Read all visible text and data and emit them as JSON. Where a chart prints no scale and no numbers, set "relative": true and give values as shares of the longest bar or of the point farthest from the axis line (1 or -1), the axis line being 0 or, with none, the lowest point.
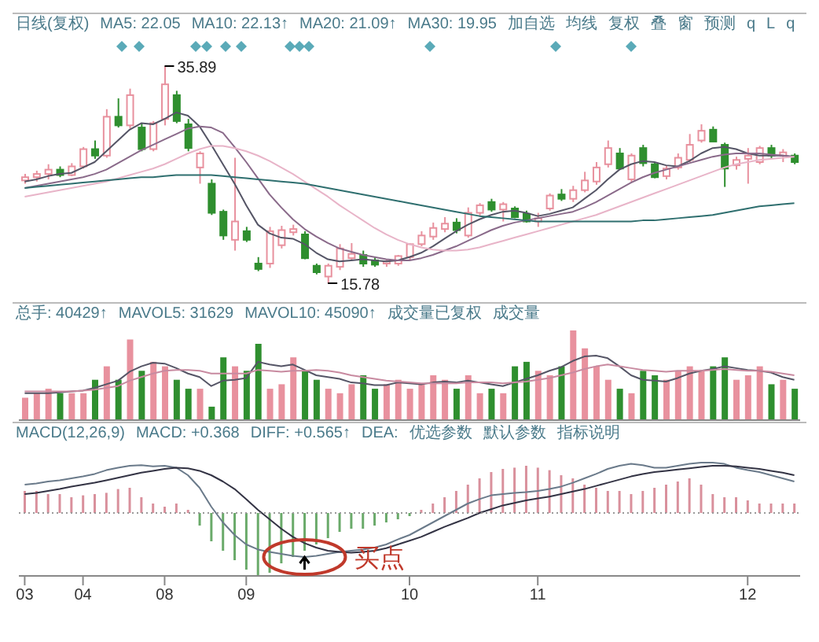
{
  "chart_data": [
    {
      "type": "candlestick",
      "tick_labels": false,
      "categories": [
        "03",
        null,
        null,
        null,
        null,
        "04",
        null,
        null,
        null,
        null,
        null,
        null,
        "08",
        null,
        null,
        null,
        null,
        null,
        null,
        "09",
        null,
        null,
        null,
        null,
        null,
        null,
        null,
        null,
        null,
        null,
        null,
        null,
        null,
        "10",
        null,
        null,
        null,
        null,
        null,
        null,
        null,
        null,
        null,
        null,
        "11",
        null,
        null,
        null,
        null,
        null,
        null,
        null,
        null,
        null,
        null,
        null,
        null,
        null,
        null,
        null,
        null,
        null,
        "12",
        null,
        null,
        null,
        null
      ],
      "annotations": [
        "日线(复权)",
        "MA5: 22.05",
        "MA10: 22.13↑",
        "MA20: 21.09↑",
        "MA30: 19.95",
        "加自选",
        "均线",
        "复权",
        "叠",
        "窗",
        "预测",
        "q",
        "L",
        "q",
        "35.89",
        "15.78"
      ],
      "ohlc": [
        [
          25.3,
          25.9,
          25.0,
          25.6
        ],
        [
          25.6,
          26.2,
          25.2,
          25.9
        ],
        [
          25.9,
          26.8,
          25.4,
          26.3
        ],
        [
          26.3,
          26.6,
          25.6,
          25.8
        ],
        [
          25.8,
          26.9,
          25.7,
          26.6
        ],
        [
          26.6,
          28.4,
          26.4,
          28.2
        ],
        [
          28.2,
          29.0,
          27.3,
          27.6
        ],
        [
          27.6,
          31.9,
          27.4,
          31.2
        ],
        [
          31.2,
          32.9,
          30.2,
          30.4
        ],
        [
          30.4,
          33.8,
          30.1,
          33.2
        ],
        [
          30.2,
          30.6,
          28.0,
          28.2
        ],
        [
          28.2,
          30.8,
          28.0,
          30.6
        ],
        [
          31.0,
          35.89,
          30.4,
          34.2
        ],
        [
          33.2,
          33.6,
          30.6,
          30.8
        ],
        [
          30.5,
          31.0,
          28.0,
          28.3
        ],
        [
          26.5,
          28.0,
          25.0,
          27.8
        ],
        [
          25.0,
          25.4,
          22.1,
          22.3
        ],
        [
          22.4,
          22.6,
          19.8,
          20.2
        ],
        [
          19.8,
          27.4,
          18.8,
          21.5
        ],
        [
          20.6,
          21.0,
          19.6,
          19.8
        ],
        [
          17.6,
          18.2,
          16.9,
          17.1
        ],
        [
          17.6,
          21.0,
          17.2,
          20.6
        ],
        [
          19.3,
          21.1,
          19.0,
          20.7
        ],
        [
          20.5,
          21.2,
          20.2,
          20.8
        ],
        [
          20.3,
          20.6,
          18.0,
          18.1
        ],
        [
          17.4,
          17.6,
          16.6,
          16.8
        ],
        [
          16.4,
          17.6,
          15.78,
          17.4
        ],
        [
          17.3,
          19.4,
          17.0,
          19.0
        ],
        [
          18.1,
          19.5,
          17.9,
          18.5
        ],
        [
          18.4,
          18.8,
          17.3,
          17.6
        ],
        [
          17.9,
          18.2,
          17.3,
          17.5
        ],
        [
          17.6,
          18.0,
          17.3,
          17.8
        ],
        [
          17.6,
          18.4,
          17.4,
          18.3
        ],
        [
          18.2,
          19.5,
          17.9,
          19.4
        ],
        [
          19.4,
          20.6,
          19.2,
          20.2
        ],
        [
          20.1,
          21.4,
          19.8,
          20.9
        ],
        [
          20.8,
          21.9,
          20.5,
          21.3
        ],
        [
          21.4,
          21.8,
          20.4,
          20.7
        ],
        [
          20.2,
          22.8,
          20.0,
          22.3
        ],
        [
          22.3,
          23.2,
          22.0,
          23.0
        ],
        [
          23.3,
          23.6,
          22.4,
          22.6
        ],
        [
          22.6,
          23.3,
          21.5,
          23.1
        ],
        [
          22.7,
          22.9,
          21.8,
          21.9
        ],
        [
          22.2,
          22.5,
          21.4,
          21.5
        ],
        [
          21.5,
          22.3,
          21.0,
          21.8
        ],
        [
          22.7,
          24.1,
          22.5,
          23.9
        ],
        [
          24.0,
          24.5,
          23.4,
          23.6
        ],
        [
          23.6,
          24.8,
          23.3,
          24.4
        ],
        [
          24.4,
          26.1,
          24.2,
          25.3
        ],
        [
          25.2,
          27.0,
          24.9,
          26.5
        ],
        [
          26.8,
          29.0,
          26.5,
          28.3
        ],
        [
          27.8,
          28.3,
          26.3,
          26.4
        ],
        [
          25.4,
          27.8,
          25.1,
          27.6
        ],
        [
          28.3,
          28.6,
          26.6,
          26.9
        ],
        [
          26.8,
          27.0,
          25.5,
          25.6
        ],
        [
          25.7,
          26.7,
          25.4,
          26.4
        ],
        [
          26.5,
          27.8,
          26.3,
          27.4
        ],
        [
          27.2,
          29.6,
          27.0,
          28.6
        ],
        [
          29.0,
          30.5,
          28.8,
          29.9
        ],
        [
          30.0,
          30.3,
          28.9,
          28.9
        ],
        [
          28.6,
          28.8,
          24.7,
          26.4
        ],
        [
          26.7,
          27.5,
          26.3,
          27.2
        ],
        [
          27.3,
          28.3,
          25.0,
          27.6
        ],
        [
          27.0,
          28.5,
          26.8,
          28.3
        ],
        [
          28.3,
          28.6,
          27.3,
          27.6
        ],
        [
          27.6,
          28.2,
          27.0,
          27.9
        ],
        [
          27.6,
          27.8,
          26.8,
          27.0
        ]
      ],
      "colors": [
        "#e8919e",
        "#e8919e",
        "#e8919e",
        "#2f8f2f",
        "#e8919e",
        "#e8919e",
        "#2f8f2f",
        "#e8919e",
        "#2f8f2f",
        "#e8919e",
        "#2f8f2f",
        "#e8919e",
        "#e8919e",
        "#2f8f2f",
        "#2f8f2f",
        "#e8919e",
        "#2f8f2f",
        "#2f8f2f",
        "#e8919e",
        "#2f8f2f",
        "#2f8f2f",
        "#e8919e",
        "#e8919e",
        "#e8919e",
        "#2f8f2f",
        "#2f8f2f",
        "#e8919e",
        "#e8919e",
        "#e8919e",
        "#2f8f2f",
        "#2f8f2f",
        "#e8919e",
        "#e8919e",
        "#e8919e",
        "#e8919e",
        "#e8919e",
        "#e8919e",
        "#2f8f2f",
        "#e8919e",
        "#e8919e",
        "#2f8f2f",
        "#e8919e",
        "#2f8f2f",
        "#2f8f2f",
        "#e8919e",
        "#e8919e",
        "#2f8f2f",
        "#e8919e",
        "#e8919e",
        "#e8919e",
        "#e8919e",
        "#2f8f2f",
        "#e8919e",
        "#2f8f2f",
        "#2f8f2f",
        "#e8919e",
        "#e8919e",
        "#e8919e",
        "#e8919e",
        "#2f8f2f",
        "#2f8f2f",
        "#e8919e",
        "#e8919e",
        "#e8919e",
        "#2f8f2f",
        "#e8919e",
        "#2f8f2f"
      ],
      "series": [
        {
          "type": "line",
          "color": "#555566",
          "values": [
            25.2,
            25.4,
            25.7,
            25.9,
            26.0,
            26.5,
            27.0,
            28.0,
            29.0,
            30.0,
            30.6,
            30.5,
            31.0,
            31.6,
            31.3,
            30.3,
            28.6,
            26.8,
            25.0,
            23.0,
            21.2,
            20.4,
            20.0,
            19.9,
            19.4,
            18.6,
            18.0,
            17.8,
            17.9,
            18.0,
            17.9,
            17.8,
            17.9,
            18.2,
            18.6,
            19.2,
            19.9,
            20.6,
            21.2,
            21.7,
            22.1,
            22.4,
            22.5,
            22.3,
            22.0,
            22.2,
            22.5,
            22.8,
            23.6,
            24.4,
            25.4,
            26.3,
            26.8,
            27.1,
            27.0,
            26.7,
            26.6,
            27.1,
            27.8,
            28.3,
            28.4,
            28.2,
            27.8,
            27.6,
            27.6,
            27.6,
            27.5
          ]
        },
        {
          "type": "line",
          "color": "#8a6a8a",
          "values": [
            24.6,
            24.8,
            25.0,
            25.2,
            25.4,
            25.6,
            25.9,
            26.3,
            26.9,
            27.5,
            28.1,
            28.6,
            29.1,
            29.6,
            30.1,
            30.3,
            30.2,
            29.7,
            28.4,
            27.0,
            25.5,
            24.0,
            22.8,
            21.7,
            20.8,
            20.1,
            19.5,
            19.0,
            18.7,
            18.4,
            18.2,
            18.0,
            17.9,
            17.9,
            18.1,
            18.4,
            18.8,
            19.2,
            19.7,
            20.2,
            20.7,
            21.1,
            21.4,
            21.6,
            21.8,
            22.0,
            22.2,
            22.4,
            22.8,
            23.3,
            23.9,
            24.5,
            25.1,
            25.6,
            26.0,
            26.3,
            26.6,
            26.9,
            27.2,
            27.5,
            27.7,
            27.8,
            27.8,
            27.8,
            27.7,
            27.6,
            27.5
          ]
        },
        {
          "type": "line",
          "color": "#e8b4c8",
          "values": [
            23.8,
            24.0,
            24.2,
            24.4,
            24.6,
            24.8,
            25.0,
            25.2,
            25.5,
            25.8,
            26.1,
            26.4,
            26.8,
            27.3,
            27.8,
            28.2,
            28.5,
            28.5,
            28.3,
            28.0,
            27.6,
            27.1,
            26.5,
            25.9,
            25.2,
            24.5,
            23.8,
            23.0,
            22.3,
            21.6,
            20.9,
            20.3,
            19.8,
            19.4,
            19.1,
            18.9,
            18.8,
            18.8,
            18.9,
            19.1,
            19.4,
            19.7,
            20.0,
            20.3,
            20.6,
            20.9,
            21.2,
            21.5,
            21.8,
            22.1,
            22.5,
            22.9,
            23.3,
            23.7,
            24.1,
            24.5,
            24.9,
            25.3,
            25.7,
            26.1,
            26.5,
            26.8,
            27.0,
            27.2,
            27.3,
            27.4,
            27.5
          ]
        },
        {
          "type": "line",
          "color": "#2f6f6f",
          "values": [
            24.6,
            24.7,
            24.8,
            24.9,
            25.0,
            25.1,
            25.2,
            25.3,
            25.4,
            25.5,
            25.6,
            25.6,
            25.7,
            25.8,
            25.8,
            25.8,
            25.8,
            25.7,
            25.6,
            25.5,
            25.4,
            25.3,
            25.2,
            25.1,
            25.0,
            24.8,
            24.6,
            24.4,
            24.2,
            24.0,
            23.8,
            23.6,
            23.4,
            23.2,
            23.0,
            22.8,
            22.6,
            22.4,
            22.2,
            22.0,
            21.9,
            21.8,
            21.7,
            21.6,
            21.5,
            21.5,
            21.5,
            21.5,
            21.5,
            21.5,
            21.5,
            21.5,
            21.5,
            21.6,
            21.6,
            21.7,
            21.8,
            21.9,
            22.0,
            22.1,
            22.3,
            22.5,
            22.7,
            22.9,
            23.0,
            23.1,
            23.2
          ]
        }
      ]
    },
    {
      "type": "bar",
      "relative": true,
      "tick_labels": false,
      "categories": [
        "03",
        null,
        null,
        null,
        null,
        "04",
        null,
        null,
        null,
        null,
        null,
        null,
        "08",
        null,
        null,
        null,
        null,
        null,
        null,
        "09",
        null,
        null,
        null,
        null,
        null,
        null,
        null,
        null,
        null,
        null,
        null,
        null,
        null,
        "10",
        null,
        null,
        null,
        null,
        null,
        null,
        null,
        null,
        null,
        null,
        "11",
        null,
        null,
        null,
        null,
        null,
        null,
        null,
        null,
        null,
        null,
        null,
        null,
        null,
        null,
        null,
        null,
        null,
        "12",
        null,
        null,
        null,
        null
      ],
      "annotations": [
        "总手: 40429↑",
        "MAVOL5: 31629",
        "MAVOL10: 45090↑",
        "成交量已复权",
        "成交量"
      ],
      "values": [
        0.25,
        0.3,
        0.35,
        0.3,
        0.3,
        0.3,
        0.45,
        0.6,
        0.45,
        0.9,
        0.55,
        0.65,
        0.6,
        0.45,
        0.35,
        0.35,
        0.15,
        0.7,
        0.6,
        0.55,
        0.85,
        0.35,
        0.4,
        0.7,
        0.55,
        0.45,
        0.35,
        0.3,
        0.4,
        0.5,
        0.35,
        0.4,
        0.45,
        0.35,
        0.4,
        0.5,
        0.45,
        0.35,
        0.5,
        0.3,
        0.35,
        0.3,
        0.6,
        0.65,
        0.55,
        0.5,
        0.6,
        1.0,
        0.8,
        0.6,
        0.45,
        0.35,
        0.3,
        0.55,
        0.5,
        0.45,
        0.55,
        0.6,
        0.55,
        0.6,
        0.7,
        0.45,
        0.5,
        0.6,
        0.4,
        0.45,
        0.35
      ],
      "colors": [
        "#e8919e",
        "#e8919e",
        "#e8919e",
        "#2f8f2f",
        "#e8919e",
        "#e8919e",
        "#2f8f2f",
        "#e8919e",
        "#2f8f2f",
        "#e8919e",
        "#2f8f2f",
        "#e8919e",
        "#e8919e",
        "#2f8f2f",
        "#2f8f2f",
        "#e8919e",
        "#2f8f2f",
        "#2f8f2f",
        "#e8919e",
        "#2f8f2f",
        "#2f8f2f",
        "#e8919e",
        "#e8919e",
        "#e8919e",
        "#2f8f2f",
        "#2f8f2f",
        "#e8919e",
        "#e8919e",
        "#e8919e",
        "#2f8f2f",
        "#2f8f2f",
        "#e8919e",
        "#e8919e",
        "#e8919e",
        "#e8919e",
        "#e8919e",
        "#e8919e",
        "#2f8f2f",
        "#e8919e",
        "#e8919e",
        "#2f8f2f",
        "#e8919e",
        "#2f8f2f",
        "#2f8f2f",
        "#e8919e",
        "#e8919e",
        "#2f8f2f",
        "#e8919e",
        "#e8919e",
        "#e8919e",
        "#e8919e",
        "#2f8f2f",
        "#e8919e",
        "#2f8f2f",
        "#2f8f2f",
        "#e8919e",
        "#e8919e",
        "#e8919e",
        "#e8919e",
        "#2f8f2f",
        "#2f8f2f",
        "#e8919e",
        "#e8919e",
        "#e8919e",
        "#2f8f2f",
        "#e8919e",
        "#2f8f2f"
      ],
      "series": [
        {
          "type": "line",
          "color": "#555566",
          "values": [
            0.3,
            0.3,
            0.3,
            0.31,
            0.32,
            0.33,
            0.36,
            0.4,
            0.44,
            0.54,
            0.6,
            0.64,
            0.63,
            0.58,
            0.52,
            0.48,
            0.38,
            0.44,
            0.45,
            0.47,
            0.65,
            0.62,
            0.6,
            0.62,
            0.56,
            0.5,
            0.48,
            0.46,
            0.42,
            0.41,
            0.39,
            0.39,
            0.42,
            0.41,
            0.4,
            0.42,
            0.43,
            0.42,
            0.44,
            0.42,
            0.4,
            0.38,
            0.42,
            0.46,
            0.5,
            0.55,
            0.59,
            0.66,
            0.71,
            0.72,
            0.69,
            0.6,
            0.5,
            0.45,
            0.44,
            0.43,
            0.47,
            0.52,
            0.55,
            0.57,
            0.6,
            0.58,
            0.56,
            0.55,
            0.53,
            0.48,
            0.45
          ]
        },
        {
          "type": "line",
          "color": "#c88aa0",
          "values": [
            0.32,
            0.32,
            0.32,
            0.32,
            0.32,
            0.33,
            0.34,
            0.36,
            0.38,
            0.44,
            0.48,
            0.52,
            0.55,
            0.56,
            0.56,
            0.55,
            0.52,
            0.52,
            0.52,
            0.52,
            0.56,
            0.55,
            0.54,
            0.55,
            0.55,
            0.56,
            0.55,
            0.53,
            0.5,
            0.48,
            0.46,
            0.44,
            0.43,
            0.42,
            0.41,
            0.41,
            0.41,
            0.41,
            0.42,
            0.42,
            0.42,
            0.41,
            0.42,
            0.43,
            0.45,
            0.47,
            0.5,
            0.53,
            0.57,
            0.6,
            0.62,
            0.6,
            0.58,
            0.56,
            0.55,
            0.54,
            0.55,
            0.55,
            0.55,
            0.56,
            0.57,
            0.56,
            0.55,
            0.55,
            0.54,
            0.52,
            0.5
          ]
        }
      ]
    },
    {
      "type": "bar",
      "relative": true,
      "categories": [
        "03",
        null,
        null,
        null,
        null,
        "04",
        null,
        null,
        null,
        null,
        null,
        null,
        "08",
        null,
        null,
        null,
        null,
        null,
        null,
        "09",
        null,
        null,
        null,
        null,
        null,
        null,
        null,
        null,
        null,
        null,
        null,
        null,
        null,
        "10",
        null,
        null,
        null,
        null,
        null,
        null,
        null,
        null,
        null,
        null,
        "11",
        null,
        null,
        null,
        null,
        null,
        null,
        null,
        null,
        null,
        null,
        null,
        null,
        null,
        null,
        null,
        null,
        null,
        "12",
        null,
        null,
        null,
        null
      ],
      "annotations": [
        "MACD(12,26,9)",
        "MACD: +0.368",
        "DIFF: +0.565↑",
        "DEA:",
        "优选参数",
        "默认参数",
        "指标说明",
        "买点"
      ],
      "ref_lines": [
        {
          "axis": "y",
          "value": 0,
          "line_style": "dotted",
          "color": "#999999"
        }
      ],
      "series": [
        {
          "type": "bar",
          "values": [
            0.35,
            0.35,
            0.3,
            0.3,
            0.25,
            0.28,
            0.3,
            0.32,
            0.38,
            0.4,
            0.25,
            0.15,
            0.1,
            0.15,
            0.05,
            -0.2,
            -0.45,
            -0.6,
            -0.75,
            -0.9,
            -1.0,
            -0.95,
            -0.8,
            -0.7,
            -0.6,
            -0.5,
            -0.4,
            -0.3,
            -0.25,
            -0.25,
            -0.2,
            -0.15,
            -0.1,
            -0.05,
            0.05,
            0.15,
            0.25,
            0.35,
            0.45,
            0.55,
            0.65,
            0.7,
            0.72,
            0.75,
            0.72,
            0.68,
            0.6,
            0.55,
            0.45,
            0.4,
            0.35,
            0.35,
            0.3,
            0.35,
            0.4,
            0.45,
            0.5,
            0.55,
            0.45,
            0.3,
            0.25,
            0.25,
            0.2,
            0.15,
            0.15,
            0.15,
            0.15
          ],
          "colors": [
            "#d9909c",
            "#d9909c",
            "#d9909c",
            "#d9909c",
            "#d9909c",
            "#d9909c",
            "#d9909c",
            "#d9909c",
            "#d9909c",
            "#d9909c",
            "#d9909c",
            "#d9909c",
            "#d9909c",
            "#d9909c",
            "#d9909c",
            "#6aaa6a",
            "#6aaa6a",
            "#6aaa6a",
            "#6aaa6a",
            "#6aaa6a",
            "#6aaa6a",
            "#6aaa6a",
            "#6aaa6a",
            "#6aaa6a",
            "#6aaa6a",
            "#6aaa6a",
            "#6aaa6a",
            "#6aaa6a",
            "#6aaa6a",
            "#6aaa6a",
            "#6aaa6a",
            "#6aaa6a",
            "#6aaa6a",
            "#6aaa6a",
            "#d9909c",
            "#d9909c",
            "#d9909c",
            "#d9909c",
            "#d9909c",
            "#d9909c",
            "#d9909c",
            "#d9909c",
            "#d9909c",
            "#d9909c",
            "#d9909c",
            "#d9909c",
            "#d9909c",
            "#d9909c",
            "#d9909c",
            "#d9909c",
            "#d9909c",
            "#d9909c",
            "#d9909c",
            "#d9909c",
            "#d9909c",
            "#d9909c",
            "#d9909c",
            "#d9909c",
            "#d9909c",
            "#d9909c",
            "#d9909c",
            "#d9909c",
            "#d9909c",
            "#d9909c",
            "#d9909c",
            "#d9909c",
            "#d9909c"
          ]
        },
        {
          "type": "line",
          "color": "#6a7a8a",
          "values": [
            0.45,
            0.47,
            0.5,
            0.52,
            0.55,
            0.58,
            0.62,
            0.68,
            0.72,
            0.75,
            0.76,
            0.74,
            0.75,
            0.72,
            0.6,
            0.4,
            0.1,
            -0.15,
            -0.35,
            -0.5,
            -0.58,
            -0.62,
            -0.65,
            -0.68,
            -0.7,
            -0.68,
            -0.65,
            -0.62,
            -0.6,
            -0.58,
            -0.55,
            -0.5,
            -0.42,
            -0.35,
            -0.25,
            -0.15,
            -0.05,
            0.05,
            0.15,
            0.22,
            0.28,
            0.3,
            0.32,
            0.33,
            0.35,
            0.38,
            0.42,
            0.48,
            0.55,
            0.62,
            0.7,
            0.75,
            0.78,
            0.76,
            0.72,
            0.72,
            0.75,
            0.78,
            0.8,
            0.8,
            0.78,
            0.72,
            0.68,
            0.65,
            0.6,
            0.55,
            0.5
          ]
        },
        {
          "type": "line",
          "color": "#333344",
          "values": [
            0.3,
            0.32,
            0.35,
            0.38,
            0.42,
            0.45,
            0.48,
            0.52,
            0.56,
            0.6,
            0.64,
            0.67,
            0.7,
            0.72,
            0.71,
            0.67,
            0.6,
            0.5,
            0.38,
            0.22,
            0.05,
            -0.1,
            -0.25,
            -0.38,
            -0.48,
            -0.55,
            -0.6,
            -0.62,
            -0.63,
            -0.62,
            -0.6,
            -0.56,
            -0.5,
            -0.44,
            -0.38,
            -0.3,
            -0.22,
            -0.15,
            -0.08,
            0.0,
            0.06,
            0.12,
            0.16,
            0.2,
            0.23,
            0.26,
            0.3,
            0.34,
            0.38,
            0.43,
            0.48,
            0.53,
            0.58,
            0.62,
            0.65,
            0.67,
            0.69,
            0.71,
            0.73,
            0.75,
            0.75,
            0.74,
            0.72,
            0.7,
            0.67,
            0.64,
            0.6
          ]
        }
      ]
    }
  ]
}
